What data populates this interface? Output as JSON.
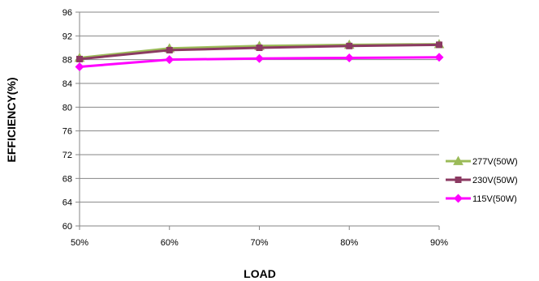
{
  "chart_data": {
    "type": "line",
    "xlabel": "LOAD",
    "ylabel": "EFFICIENCY(%)",
    "categories": [
      "50%",
      "60%",
      "70%",
      "80%",
      "90%"
    ],
    "ylim": [
      60,
      96
    ],
    "yticks": [
      60,
      64,
      68,
      72,
      76,
      80,
      84,
      88,
      92,
      96
    ],
    "grid": "horizontal",
    "legend_position": "right",
    "series": [
      {
        "name": "277V(50W)",
        "values": [
          88.3,
          89.9,
          90.3,
          90.5,
          90.6
        ],
        "color": "#9bbb59",
        "marker": "triangle"
      },
      {
        "name": "230V(50W)",
        "values": [
          88.1,
          89.6,
          90.0,
          90.3,
          90.5
        ],
        "color": "#8b3a62",
        "marker": "square"
      },
      {
        "name": "115V(50W)",
        "values": [
          86.8,
          88.0,
          88.2,
          88.3,
          88.4
        ],
        "color": "#ff00ff",
        "marker": "diamond"
      }
    ]
  }
}
